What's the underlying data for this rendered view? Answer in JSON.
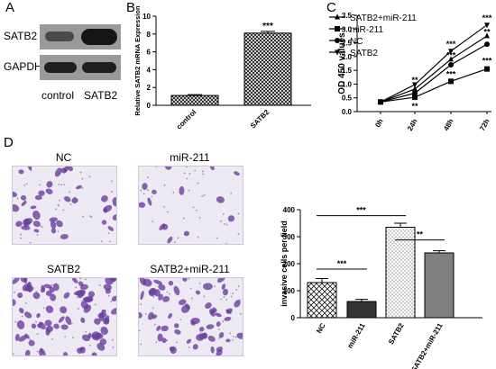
{
  "panels": {
    "a": {
      "letter": "A",
      "row_labels": [
        "SATB2",
        "GAPDH"
      ],
      "lane_labels": [
        "control",
        "SATB2"
      ]
    },
    "b": {
      "letter": "B"
    },
    "c": {
      "letter": "C"
    },
    "d": {
      "letter": "D",
      "micrograph_titles": [
        "NC",
        "miR-211",
        "SATB2",
        "SATB2+miR-211"
      ]
    }
  },
  "colors": {
    "stain_purple": "#6a3f9e",
    "bar_dark": "#333333",
    "bar_gray": "#808080",
    "bar_light": "#e6e6e6",
    "line_black": "#000000"
  },
  "chart_data": [
    {
      "id": "B",
      "type": "bar",
      "categories": [
        "control",
        "SATB2"
      ],
      "values": [
        1.1,
        8.1
      ],
      "errors": [
        0.1,
        0.2
      ],
      "ylabel": "Relative SATB2 mRNA Expression",
      "ylim": [
        0,
        10
      ],
      "yticks": [
        "0",
        "2",
        "4",
        "6",
        "8",
        "10"
      ],
      "annotations": [
        {
          "text": "***",
          "category": "SATB2"
        }
      ]
    },
    {
      "id": "C",
      "type": "line",
      "x": [
        "0h",
        "24h",
        "48h",
        "72h"
      ],
      "ylabel": "OD 450 values",
      "ylim": [
        0.0,
        3.5
      ],
      "yticks": [
        "0.0",
        "0.5",
        "1.0",
        "1.5",
        "2.0",
        "2.5",
        "3.0",
        "3.5"
      ],
      "legend_position": "top-left",
      "series": [
        {
          "name": "SATB2+miR-211",
          "marker": "triangle-up",
          "values": [
            0.35,
            0.82,
            1.9,
            2.75
          ]
        },
        {
          "name": "miR-211",
          "marker": "square",
          "values": [
            0.35,
            0.52,
            1.1,
            1.55
          ]
        },
        {
          "name": "NC",
          "marker": "circle",
          "values": [
            0.35,
            0.67,
            1.7,
            2.45
          ]
        },
        {
          "name": "SATB2",
          "marker": "triangle-down",
          "values": [
            0.35,
            0.98,
            2.2,
            3.15
          ]
        }
      ],
      "annotations": [
        {
          "text": "**",
          "x": "24h",
          "y": 1.15
        },
        {
          "text": "**",
          "x": "24h",
          "y": 0.2
        },
        {
          "text": "***",
          "x": "48h",
          "y": 2.45
        },
        {
          "text": "***",
          "x": "48h",
          "y": 2.05
        },
        {
          "text": "***",
          "x": "48h",
          "y": 1.35
        },
        {
          "text": "***",
          "x": "72h",
          "y": 3.4
        },
        {
          "text": "**",
          "x": "72h",
          "y": 2.9
        },
        {
          "text": "***",
          "x": "72h",
          "y": 1.85
        }
      ]
    },
    {
      "id": "D",
      "type": "bar",
      "categories": [
        "NC",
        "miR-211",
        "SATB2",
        "SATB2+miR-211"
      ],
      "values": [
        130,
        60,
        335,
        240
      ],
      "errors": [
        15,
        8,
        15,
        8
      ],
      "ylabel": "invasive cells per field",
      "ylim": [
        0,
        400
      ],
      "yticks": [
        "0",
        "100",
        "200",
        "300",
        "400"
      ],
      "annotations": [
        {
          "text": "***",
          "between": [
            "NC",
            "miR-211"
          ]
        },
        {
          "text": "***",
          "between": [
            "NC",
            "SATB2"
          ]
        },
        {
          "text": "**",
          "between": [
            "SATB2",
            "SATB2+miR-211"
          ]
        }
      ]
    }
  ]
}
